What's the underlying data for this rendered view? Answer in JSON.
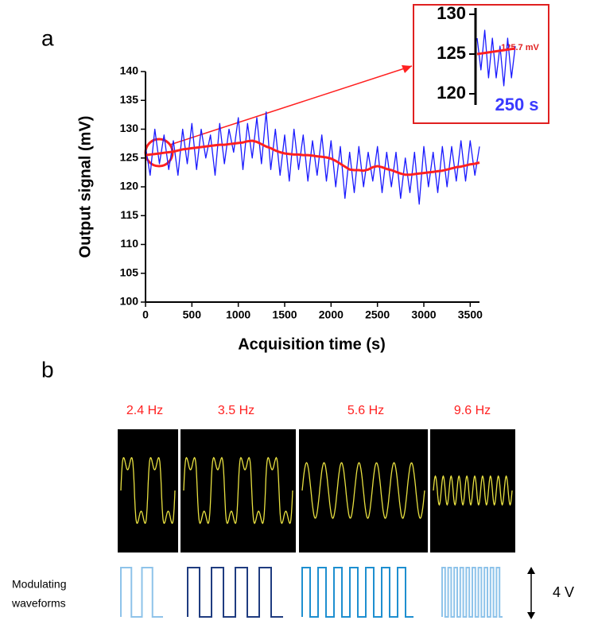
{
  "panel_labels": [
    "a",
    "b"
  ],
  "chart_data": [
    {
      "type": "line",
      "xlabel": "Acquisition time (s)",
      "ylabel": "Output signal (mV)",
      "x": [
        0,
        50,
        100,
        150,
        200,
        250,
        300,
        350,
        400,
        450,
        500,
        550,
        600,
        650,
        700,
        750,
        800,
        850,
        900,
        950,
        1000,
        1050,
        1100,
        1150,
        1200,
        1250,
        1300,
        1350,
        1400,
        1450,
        1500,
        1550,
        1600,
        1650,
        1700,
        1750,
        1800,
        1850,
        1900,
        1950,
        2000,
        2050,
        2100,
        2150,
        2200,
        2250,
        2300,
        2350,
        2400,
        2450,
        2500,
        2550,
        2600,
        2650,
        2700,
        2750,
        2800,
        2850,
        2900,
        2950,
        3000,
        3050,
        3100,
        3150,
        3200,
        3250,
        3300,
        3350,
        3400,
        3450,
        3500,
        3550,
        3600
      ],
      "series": [
        {
          "color": "#1a1aff",
          "values": [
            127,
            122,
            130,
            124,
            129,
            123,
            128,
            122,
            130,
            124,
            131,
            123,
            130,
            125,
            129,
            122,
            131,
            124,
            130,
            126,
            132,
            123,
            131,
            125,
            132,
            124,
            133,
            123,
            130,
            122,
            129,
            121,
            130,
            123,
            129,
            121,
            128,
            122,
            129,
            121,
            128,
            120,
            127,
            118,
            126,
            119,
            127,
            120,
            126,
            121,
            127,
            119,
            126,
            120,
            126,
            118,
            125,
            119,
            126,
            117,
            127,
            120,
            126,
            119,
            127,
            120,
            127,
            121,
            128,
            121,
            128,
            122,
            127
          ]
        },
        {
          "color": "#ff2020",
          "values": [
            125.5,
            125.6,
            125.7,
            125.8,
            125.9,
            126.0,
            126.1,
            126.3,
            126.5,
            126.6,
            126.7,
            126.8,
            126.9,
            127.0,
            127.1,
            127.2,
            127.3,
            127.3,
            127.4,
            127.5,
            127.6,
            127.7,
            127.9,
            128.0,
            127.8,
            127.4,
            127.0,
            126.7,
            126.3,
            126.0,
            125.8,
            125.7,
            125.6,
            125.6,
            125.5,
            125.5,
            125.4,
            125.3,
            125.2,
            125.1,
            124.9,
            124.5,
            124.0,
            123.5,
            123.0,
            122.9,
            122.9,
            122.8,
            123.0,
            123.4,
            123.6,
            123.4,
            123.1,
            122.9,
            122.6,
            122.3,
            122.1,
            122.1,
            122.2,
            122.3,
            122.4,
            122.5,
            122.6,
            122.7,
            122.8,
            123.0,
            123.2,
            123.4,
            123.5,
            123.7,
            123.9,
            124.0,
            124.2
          ]
        }
      ],
      "xlim": [
        0,
        3600
      ],
      "xticks": [
        0,
        500,
        1000,
        1500,
        2000,
        2500,
        3000,
        3500
      ],
      "ylim": [
        100,
        140
      ],
      "yticks": [
        100,
        105,
        110,
        115,
        120,
        125,
        130,
        135,
        140
      ]
    },
    {
      "type": "line",
      "x": [
        0,
        25,
        50,
        75,
        100,
        125,
        150,
        175,
        200,
        225,
        250
      ],
      "series": [
        {
          "color": "#1a1aff",
          "values": [
            127,
            123,
            128,
            122,
            127,
            122,
            126,
            121,
            127,
            122,
            126
          ]
        },
        {
          "color": "#ff2020",
          "values": [
            125.0,
            125.07,
            125.14,
            125.21,
            125.28,
            125.35,
            125.42,
            125.49,
            125.56,
            125.63,
            125.7
          ]
        }
      ],
      "xlim": [
        0,
        250
      ],
      "ylim": [
        119,
        131
      ],
      "yticks": [
        120,
        125,
        130
      ],
      "annotations": [
        "125.7 mV",
        "250 s"
      ]
    }
  ],
  "panel_b": {
    "frequencies": [
      "2.4 Hz",
      "3.5 Hz",
      "5.6 Hz",
      "9.6 Hz"
    ],
    "waveform_label": [
      "Modulating",
      "waveforms"
    ],
    "scale_label": "4 V"
  }
}
